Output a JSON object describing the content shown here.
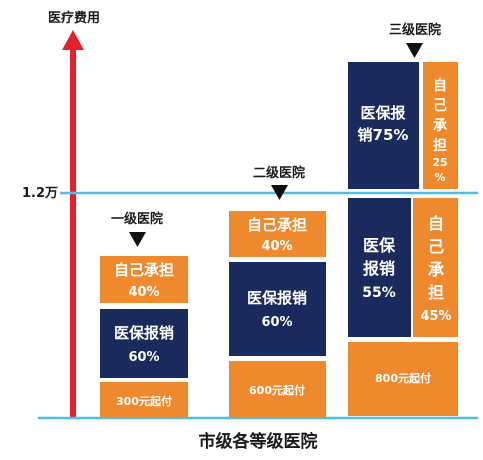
{
  "y_axis_label": "医疗费用",
  "threshold_label": "1.2万",
  "x_axis_label": "市级各等级医院",
  "colors": {
    "navy": "#1b2a5c",
    "orange": "#ee8a2d",
    "line": "#52bde6",
    "arrow": "#e6202a",
    "text": "#1a1a1a"
  },
  "columns": [
    {
      "name": "一级医院",
      "deductible": "300元起付",
      "insurance_label": [
        "医保报销",
        "60%"
      ],
      "self_label": [
        "自己承担",
        "40%"
      ]
    },
    {
      "name": "二级医院",
      "deductible": "600元起付",
      "insurance_label": [
        "医保报销",
        "60%"
      ],
      "self_label": [
        "自己承担",
        "40%"
      ]
    },
    {
      "name": "三级医院",
      "deductible": "800元起付",
      "above_insurance_label": [
        "医保报",
        "销75%"
      ],
      "above_self_label": [
        "自",
        "己",
        "承",
        "担",
        "25",
        "%"
      ],
      "below_insurance_label": [
        "医保",
        "报销",
        "55%"
      ],
      "below_self_label": [
        "自",
        "己",
        "承",
        "担",
        "45%"
      ]
    }
  ]
}
